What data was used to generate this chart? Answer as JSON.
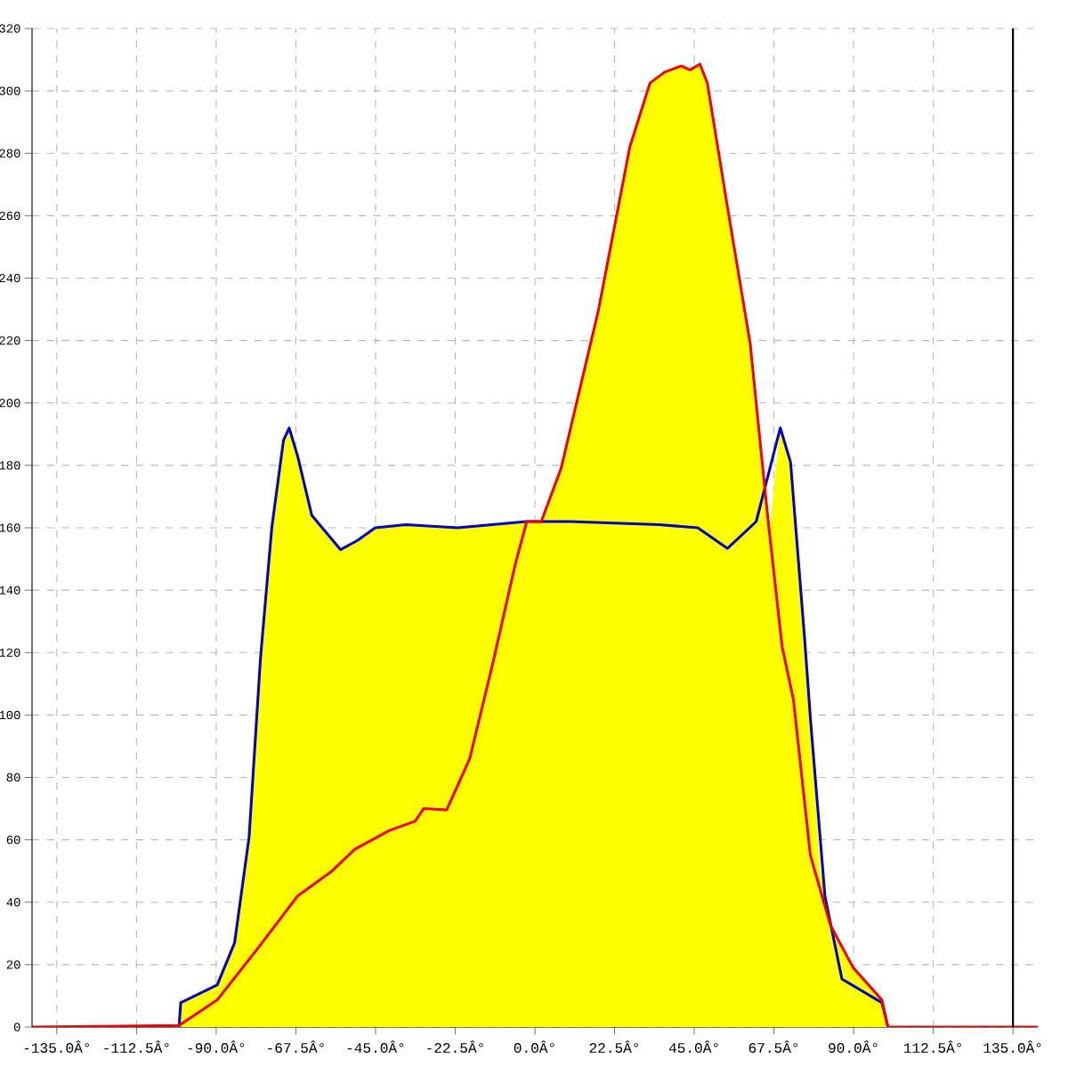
{
  "chart_data": {
    "type": "area",
    "xlim": [
      -142,
      142
    ],
    "ylim": [
      0,
      320
    ],
    "xticks": [
      {
        "value": -135,
        "label": "-135.0Â°"
      },
      {
        "value": -112.5,
        "label": "-112.5Â°"
      },
      {
        "value": -90,
        "label": "-90.0Â°"
      },
      {
        "value": -67.5,
        "label": "-67.5Â°"
      },
      {
        "value": -45,
        "label": "-45.0Â°"
      },
      {
        "value": -22.5,
        "label": "-22.5Â°"
      },
      {
        "value": 0,
        "label": "0.0Â°"
      },
      {
        "value": 22.5,
        "label": "22.5Â°"
      },
      {
        "value": 45,
        "label": "45.0Â°"
      },
      {
        "value": 67.5,
        "label": "67.5Â°"
      },
      {
        "value": 90,
        "label": "90.0Â°"
      },
      {
        "value": 112.5,
        "label": "112.5Â°"
      },
      {
        "value": 135,
        "label": "135.0Â°"
      }
    ],
    "yticks": [
      0,
      20,
      40,
      60,
      80,
      100,
      120,
      140,
      160,
      180,
      200,
      220,
      240,
      260,
      280,
      300,
      320
    ],
    "grid": true,
    "marker": "none",
    "line_style": "solid",
    "ref_lines": [
      {
        "axis": "x",
        "value": 135,
        "color": "#000000"
      }
    ],
    "series": [
      {
        "color": "#ffff00",
        "x": [
          -100.5,
          -100,
          -89.7,
          -84.8,
          -80.7,
          -77.5,
          -74.3,
          -71,
          -69.4,
          -67,
          -63,
          -54.9,
          -50,
          -45.1,
          -36.4,
          -21.8,
          -2.4,
          1.8,
          7.4,
          18,
          26.8,
          32.5,
          36.6,
          41.4,
          43.8,
          46.6,
          48.7,
          54.4,
          60.8,
          65.7,
          66.5,
          69.3,
          72.2,
          76.2,
          77.8,
          80.5,
          83.5,
          89.9,
          98,
          99.7
        ],
        "values": [
          0,
          7.8,
          13.5,
          27,
          61,
          118,
          160,
          188,
          192,
          183,
          164,
          153,
          156,
          160,
          161,
          160,
          162,
          162,
          179,
          230,
          282,
          302.5,
          306,
          308,
          306.7,
          308.6,
          302.5,
          262.6,
          219,
          164,
          160,
          192,
          181,
          124,
          99,
          50,
          32.5,
          19,
          8.7,
          0
        ]
      },
      {
        "type": "line",
        "color": "#0000cc",
        "x": [
          -100.5,
          -100,
          -89.7,
          -84.8,
          -80.7,
          -77.5,
          -74.3,
          -71,
          -69.4,
          -67,
          -63,
          -54.9,
          -50,
          -45.1,
          -36.4,
          -21.8,
          -2.4,
          10,
          35,
          46,
          54.4,
          62.5,
          69.3,
          72.2,
          76.2,
          77.8,
          81.9,
          86.7,
          98,
          99.7
        ],
        "values": [
          0,
          7.8,
          13.5,
          27,
          61,
          118,
          160,
          188,
          192,
          183,
          164,
          153,
          156,
          160,
          161,
          160,
          162,
          162,
          161,
          160,
          153.4,
          162,
          192,
          181,
          124,
          99,
          42,
          15.4,
          7.8,
          0
        ]
      },
      {
        "type": "line",
        "color": "#ee0000",
        "x": [
          -142,
          -100.5,
          -89.7,
          -78.4,
          -67,
          -57.3,
          -50.8,
          -41.1,
          -33.8,
          -31.4,
          -24.9,
          -18.4,
          -12,
          -5.5,
          -2.3,
          1.8,
          7.4,
          18,
          26.8,
          32.5,
          36.6,
          41.4,
          43.8,
          46.6,
          48.7,
          54.4,
          60.8,
          65.7,
          69.8,
          73,
          77.8,
          83.5,
          89.9,
          98,
          99.7,
          142
        ],
        "values": [
          0,
          0.5,
          8.7,
          25,
          42,
          50,
          57,
          63,
          66,
          70,
          69.6,
          86,
          116,
          148.5,
          162,
          162,
          179,
          230,
          282,
          302.5,
          306,
          308,
          306.7,
          308.6,
          302.5,
          262.6,
          219,
          164,
          122,
          105,
          55,
          32.5,
          19,
          8.7,
          0,
          0
        ]
      }
    ]
  }
}
